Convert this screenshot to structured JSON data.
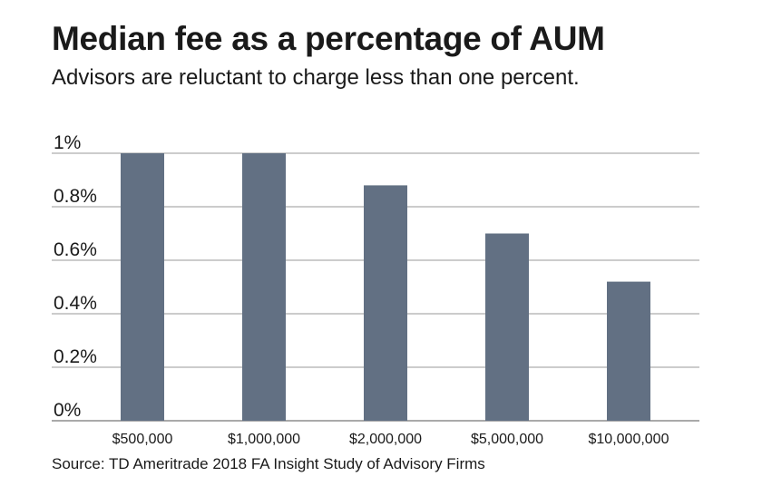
{
  "chart_data": {
    "type": "bar",
    "title": "Median fee as a percentage of AUM",
    "subtitle": "Advisors are reluctant to charge less than one percent.",
    "categories": [
      "$500,000",
      "$1,000,000",
      "$2,000,000",
      "$5,000,000",
      "$10,000,000"
    ],
    "values": [
      1.0,
      1.0,
      0.88,
      0.7,
      0.52
    ],
    "yticks": [
      {
        "value": 1.0,
        "label": "1%"
      },
      {
        "value": 0.8,
        "label": "0.8%"
      },
      {
        "value": 0.6,
        "label": "0.6%"
      },
      {
        "value": 0.4,
        "label": "0.4%"
      },
      {
        "value": 0.2,
        "label": "0.2%"
      },
      {
        "value": 0.0,
        "label": "0%"
      }
    ],
    "ylim": [
      0,
      1
    ],
    "grid": true,
    "bar_color": "#627083",
    "grid_color": "#999999",
    "source": "Source: TD Ameritrade 2018 FA Insight Study of Advisory Firms"
  }
}
